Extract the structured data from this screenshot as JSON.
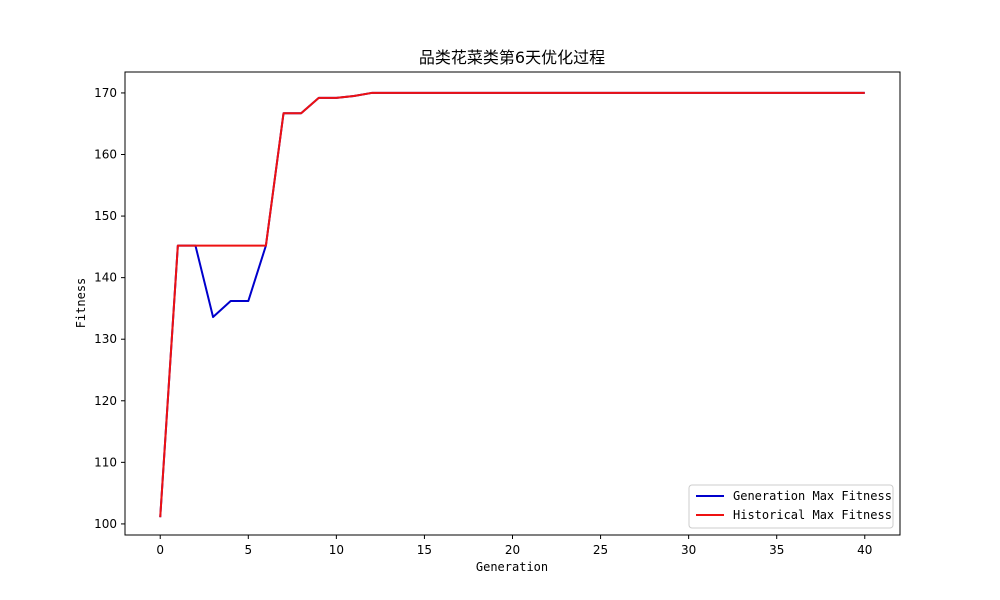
{
  "chart_data": {
    "type": "line",
    "title": "品类花菜类第6天优化过程",
    "xlabel": "Generation",
    "ylabel": "Fitness",
    "xlim": [
      -2,
      42
    ],
    "ylim": [
      98.2,
      173.4
    ],
    "x_ticks": [
      0,
      5,
      10,
      15,
      20,
      25,
      30,
      35,
      40
    ],
    "y_ticks": [
      100,
      110,
      120,
      130,
      140,
      150,
      160,
      170
    ],
    "grid": false,
    "legend_position": "lower-right",
    "x": [
      0,
      1,
      2,
      3,
      4,
      5,
      6,
      7,
      8,
      9,
      10,
      11,
      12,
      13,
      14,
      15,
      16,
      17,
      18,
      19,
      20,
      21,
      22,
      23,
      24,
      25,
      26,
      27,
      28,
      29,
      30,
      31,
      32,
      33,
      34,
      35,
      36,
      37,
      38,
      39,
      40
    ],
    "series": [
      {
        "name": "Generation Max Fitness",
        "color": "#0000cc",
        "values": [
          101.1,
          145.2,
          145.2,
          133.6,
          136.2,
          136.2,
          145.2,
          166.7,
          166.7,
          169.2,
          169.2,
          169.5,
          170.0,
          170.0,
          170.0,
          170.0,
          170.0,
          170.0,
          170.0,
          170.0,
          170.0,
          170.0,
          170.0,
          170.0,
          170.0,
          170.0,
          170.0,
          170.0,
          170.0,
          170.0,
          170.0,
          170.0,
          170.0,
          170.0,
          170.0,
          170.0,
          170.0,
          170.0,
          170.0,
          170.0,
          170.0
        ]
      },
      {
        "name": "Historical Max Fitness",
        "color": "#ee1111",
        "values": [
          101.1,
          145.2,
          145.2,
          145.2,
          145.2,
          145.2,
          145.2,
          166.7,
          166.7,
          169.2,
          169.2,
          169.5,
          170.0,
          170.0,
          170.0,
          170.0,
          170.0,
          170.0,
          170.0,
          170.0,
          170.0,
          170.0,
          170.0,
          170.0,
          170.0,
          170.0,
          170.0,
          170.0,
          170.0,
          170.0,
          170.0,
          170.0,
          170.0,
          170.0,
          170.0,
          170.0,
          170.0,
          170.0,
          170.0,
          170.0,
          170.0
        ]
      }
    ]
  }
}
